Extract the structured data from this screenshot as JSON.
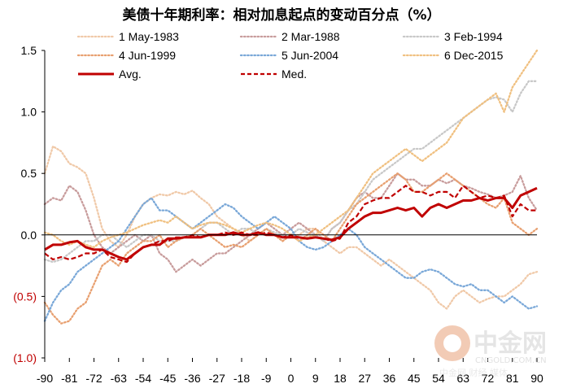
{
  "chart_data": {
    "type": "line",
    "title": "美债十年期利率：相对加息起点的变动百分点（%）",
    "xlabel": "",
    "ylabel": "",
    "x": [
      -90,
      -87,
      -84,
      -81,
      -78,
      -75,
      -72,
      -69,
      -66,
      -63,
      -60,
      -57,
      -54,
      -51,
      -48,
      -45,
      -42,
      -39,
      -36,
      -33,
      -30,
      -27,
      -24,
      -21,
      -18,
      -15,
      -12,
      -9,
      -6,
      -3,
      0,
      3,
      6,
      9,
      12,
      15,
      18,
      21,
      24,
      27,
      30,
      33,
      36,
      39,
      42,
      45,
      48,
      51,
      54,
      57,
      60,
      63,
      66,
      69,
      72,
      75,
      78,
      81,
      84,
      87,
      90
    ],
    "xticks": [
      -90,
      -81,
      -72,
      -63,
      -54,
      -45,
      -36,
      -27,
      -18,
      -9,
      0,
      9,
      18,
      27,
      36,
      45,
      54,
      63,
      72,
      81,
      90
    ],
    "xtick_labels": [
      "-90",
      "-81",
      "-72",
      "-63",
      "-54",
      "-45",
      "-36",
      "-27",
      "-18",
      "-9",
      "0",
      "9",
      "18",
      "27",
      "36",
      "45",
      "54",
      "63",
      "72",
      "81",
      "90"
    ],
    "ylim": [
      -1.0,
      1.5
    ],
    "yticks": [
      -1.0,
      -0.5,
      0.0,
      0.5,
      1.0,
      1.5
    ],
    "ytick_labels": [
      "(1.0)",
      "(0.5)",
      "0.0",
      "0.5",
      "1.0",
      "1.5"
    ],
    "grid": false,
    "legend_position": "top",
    "series": [
      {
        "name": "1 May-1983",
        "color": "#f0c9a8",
        "style": "dotted",
        "values": [
          0.5,
          0.72,
          0.68,
          0.58,
          0.55,
          0.5,
          0.3,
          0.05,
          -0.05,
          -0.1,
          0.0,
          0.15,
          0.25,
          0.3,
          0.33,
          0.32,
          0.35,
          0.33,
          0.36,
          0.3,
          0.25,
          0.15,
          0.1,
          0.05,
          0.0,
          -0.05,
          0.0,
          0.05,
          0.0,
          -0.05,
          0.0,
          0.0,
          0.05,
          0.05,
          -0.05,
          -0.1,
          -0.15,
          -0.1,
          -0.1,
          -0.15,
          -0.2,
          -0.25,
          -0.2,
          -0.25,
          -0.3,
          -0.35,
          -0.4,
          -0.45,
          -0.55,
          -0.6,
          -0.5,
          -0.45,
          -0.5,
          -0.55,
          -0.52,
          -0.5,
          -0.5,
          -0.45,
          -0.4,
          -0.32,
          -0.3
        ]
      },
      {
        "name": "2 Mar-1988",
        "color": "#c89c9c",
        "style": "dotted",
        "values": [
          0.25,
          0.3,
          0.28,
          0.4,
          0.35,
          0.2,
          0.0,
          -0.1,
          -0.15,
          -0.1,
          -0.05,
          0.0,
          -0.05,
          0.0,
          -0.15,
          -0.2,
          -0.3,
          -0.25,
          -0.2,
          -0.25,
          -0.2,
          -0.15,
          -0.15,
          -0.1,
          -0.05,
          0.0,
          0.05,
          0.1,
          0.05,
          0.0,
          0.05,
          0.1,
          0.05,
          0.0,
          -0.05,
          0.05,
          0.1,
          0.2,
          0.3,
          0.35,
          0.3,
          0.3,
          0.4,
          0.5,
          0.45,
          0.45,
          0.4,
          0.4,
          0.45,
          0.42,
          0.45,
          0.4,
          0.38,
          0.35,
          0.33,
          0.3,
          0.32,
          0.35,
          0.48,
          0.3,
          0.2
        ]
      },
      {
        "name": "3 Feb-1994",
        "color": "#c8c8c8",
        "style": "dotted",
        "values": [
          -0.2,
          -0.22,
          -0.2,
          -0.15,
          -0.1,
          -0.05,
          -0.05,
          0.0,
          0.0,
          -0.05,
          -0.1,
          -0.05,
          0.0,
          0.0,
          -0.05,
          -0.05,
          -0.05,
          -0.02,
          0.0,
          0.05,
          0.1,
          0.1,
          0.05,
          0.0,
          0.05,
          0.05,
          0.0,
          0.05,
          0.02,
          0.0,
          0.0,
          0.05,
          0.02,
          0.0,
          -0.05,
          0.05,
          0.1,
          0.2,
          0.25,
          0.35,
          0.45,
          0.5,
          0.55,
          0.6,
          0.65,
          0.7,
          0.7,
          0.75,
          0.8,
          0.85,
          0.9,
          0.95,
          1.0,
          1.05,
          1.1,
          1.12,
          1.1,
          1.0,
          1.15,
          1.25,
          1.25
        ]
      },
      {
        "name": "4 Jun-1999",
        "color": "#e8a070",
        "style": "dotted",
        "values": [
          -0.55,
          -0.65,
          -0.72,
          -0.7,
          -0.6,
          -0.55,
          -0.4,
          -0.25,
          -0.2,
          -0.25,
          -0.15,
          -0.1,
          -0.05,
          -0.05,
          0.0,
          -0.1,
          -0.05,
          -0.02,
          0.0,
          0.05,
          0.0,
          -0.05,
          -0.1,
          -0.08,
          -0.1,
          -0.05,
          0.0,
          0.05,
          0.0,
          -0.05,
          0.0,
          -0.05,
          0.0,
          0.05,
          0.0,
          -0.05,
          0.05,
          0.15,
          0.25,
          0.3,
          0.35,
          0.4,
          0.45,
          0.5,
          0.45,
          0.35,
          0.35,
          0.4,
          0.45,
          0.5,
          0.45,
          0.4,
          0.35,
          0.3,
          0.25,
          0.22,
          0.3,
          0.1,
          0.05,
          0.0,
          0.05
        ]
      },
      {
        "name": "5 Jun-2004",
        "color": "#7aa8d8",
        "style": "dotted",
        "values": [
          -0.7,
          -0.55,
          -0.45,
          -0.4,
          -0.3,
          -0.25,
          -0.2,
          -0.15,
          -0.1,
          -0.05,
          0.05,
          0.15,
          0.25,
          0.3,
          0.2,
          0.2,
          0.15,
          0.1,
          0.05,
          0.1,
          0.15,
          0.2,
          0.25,
          0.22,
          0.15,
          0.1,
          0.05,
          0.1,
          0.15,
          0.1,
          0.05,
          -0.05,
          -0.1,
          -0.12,
          -0.1,
          -0.05,
          0.0,
          0.05,
          0.0,
          -0.1,
          -0.15,
          -0.2,
          -0.25,
          -0.3,
          -0.35,
          -0.35,
          -0.3,
          -0.28,
          -0.3,
          -0.35,
          -0.4,
          -0.42,
          -0.4,
          -0.45,
          -0.45,
          -0.5,
          -0.55,
          -0.5,
          -0.55,
          -0.6,
          -0.58
        ]
      },
      {
        "name": "6 Dec-2015",
        "color": "#f0c080",
        "style": "dotted",
        "values": [
          0.02,
          0.0,
          -0.05,
          -0.08,
          -0.05,
          -0.08,
          -0.1,
          -0.05,
          -0.02,
          0.0,
          0.02,
          0.05,
          0.08,
          0.1,
          0.12,
          0.1,
          0.15,
          0.1,
          0.05,
          0.08,
          0.1,
          0.1,
          0.08,
          0.05,
          0.02,
          0.05,
          0.08,
          0.1,
          0.08,
          0.05,
          0.0,
          -0.05,
          -0.02,
          0.0,
          0.05,
          0.1,
          0.15,
          0.2,
          0.3,
          0.4,
          0.5,
          0.55,
          0.6,
          0.65,
          0.7,
          0.65,
          0.6,
          0.65,
          0.7,
          0.75,
          0.85,
          0.95,
          1.0,
          1.05,
          1.1,
          1.15,
          1.0,
          1.2,
          1.3,
          1.4,
          1.5
        ]
      },
      {
        "name": "Avg.",
        "color": "#c00000",
        "style": "solid",
        "values": [
          -0.12,
          -0.08,
          -0.08,
          -0.06,
          -0.05,
          -0.1,
          -0.12,
          -0.12,
          -0.15,
          -0.18,
          -0.2,
          -0.15,
          -0.1,
          -0.08,
          -0.08,
          -0.03,
          -0.03,
          -0.02,
          -0.02,
          -0.02,
          0.0,
          0.0,
          0.0,
          0.02,
          0.0,
          0.0,
          0.02,
          0.0,
          0.0,
          -0.02,
          -0.02,
          -0.02,
          -0.03,
          -0.02,
          -0.03,
          -0.04,
          -0.02,
          0.05,
          0.1,
          0.15,
          0.18,
          0.18,
          0.2,
          0.22,
          0.2,
          0.22,
          0.15,
          0.22,
          0.25,
          0.22,
          0.25,
          0.28,
          0.28,
          0.3,
          0.28,
          0.3,
          0.3,
          0.22,
          0.32,
          0.35,
          0.38
        ]
      },
      {
        "name": "Med.",
        "color": "#c00000",
        "style": "dashed",
        "values": [
          -0.15,
          -0.2,
          -0.18,
          -0.2,
          -0.18,
          -0.15,
          -0.15,
          -0.12,
          -0.18,
          -0.2,
          -0.22,
          -0.15,
          -0.1,
          -0.08,
          -0.05,
          -0.05,
          -0.02,
          -0.02,
          0.0,
          -0.02,
          0.0,
          0.0,
          0.02,
          0.0,
          0.02,
          0.0,
          0.0,
          0.02,
          0.0,
          -0.02,
          0.0,
          -0.02,
          -0.03,
          -0.02,
          -0.03,
          -0.05,
          -0.03,
          0.1,
          0.15,
          0.25,
          0.28,
          0.3,
          0.3,
          0.35,
          0.4,
          0.35,
          0.35,
          0.32,
          0.35,
          0.35,
          0.3,
          0.4,
          0.35,
          0.3,
          0.32,
          0.3,
          0.32,
          0.15,
          0.25,
          0.2,
          0.2
        ]
      }
    ]
  },
  "watermark": {
    "brand": "中金网",
    "url": "CNGOLD.COM.CN",
    "media": "中金网 财经 媒体"
  }
}
